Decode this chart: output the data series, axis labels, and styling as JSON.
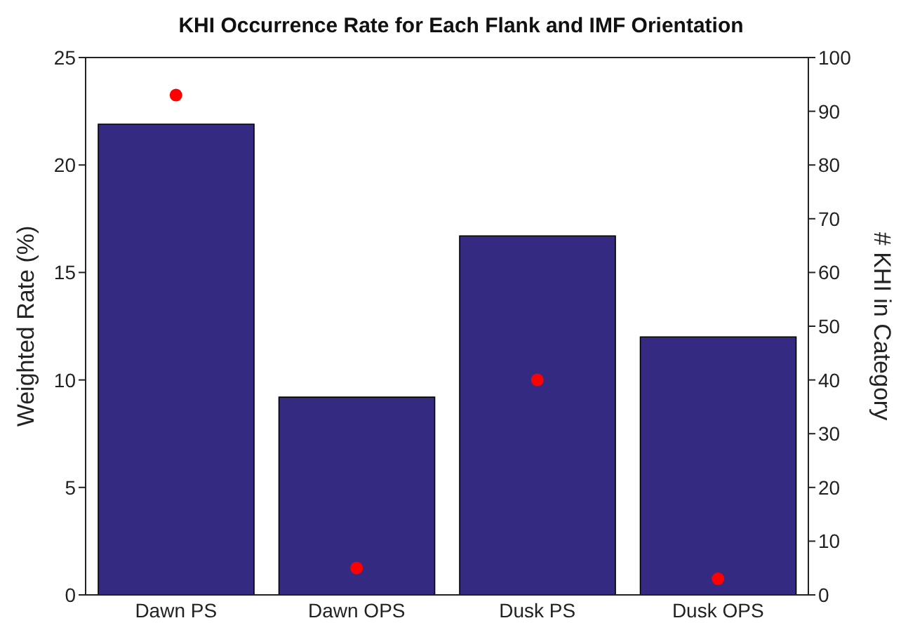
{
  "chart_data": {
    "type": "bar",
    "title": "KHI Occurrence Rate for Each Flank and IMF Orientation",
    "ylabel": "Weighted Rate (%)",
    "y2label": "# KHI in Category",
    "categories": [
      "Dawn PS",
      "Dawn OPS",
      "Dusk PS",
      "Dusk OPS"
    ],
    "series": [
      {
        "color": "#342a82",
        "values": [
          21.9,
          9.2,
          16.7,
          12.0
        ]
      },
      {
        "type": "scatter",
        "color": "#ff0000",
        "axis": "y2",
        "values": [
          93,
          5,
          40,
          3
        ]
      }
    ],
    "ylim": [
      0,
      25
    ],
    "yticks": [
      0,
      5,
      10,
      15,
      20,
      25
    ],
    "y2lim": [
      0,
      100
    ],
    "y2ticks": [
      0,
      10,
      20,
      30,
      40,
      50,
      60,
      70,
      80,
      90,
      100
    ],
    "grid": false,
    "legend": false,
    "marker": "circle"
  }
}
